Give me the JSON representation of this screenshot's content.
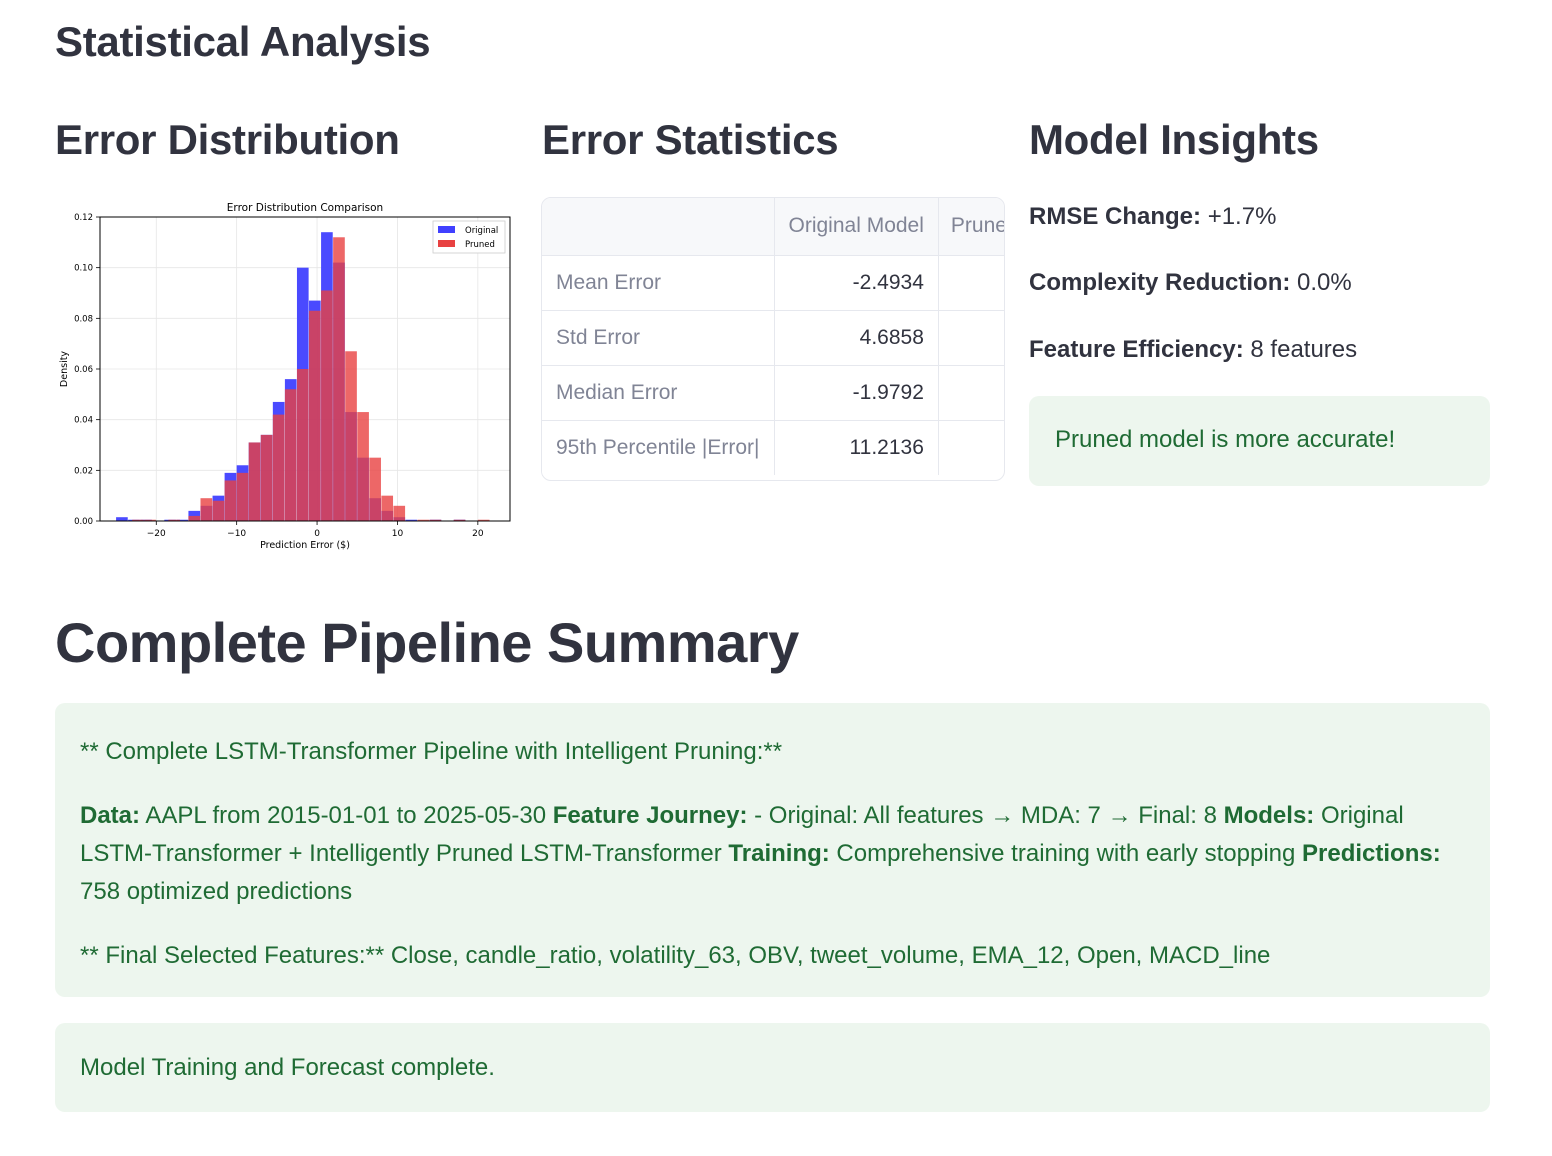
{
  "page": {
    "section_title": "Statistical Analysis",
    "pipeline_title": "Complete Pipeline Summary"
  },
  "columns": {
    "distribution_title": "Error Distribution",
    "statistics_title": "Error Statistics",
    "insights_title": "Model Insights"
  },
  "table": {
    "headers": [
      "",
      "Original Model",
      "Prune"
    ],
    "rows": [
      {
        "label": "Mean Error",
        "original": "-2.4934"
      },
      {
        "label": "Std Error",
        "original": "4.6858"
      },
      {
        "label": "Median Error",
        "original": "-1.9792"
      },
      {
        "label": "95th Percentile |Error|",
        "original": "11.2136"
      }
    ]
  },
  "insights": {
    "rmse_label": "RMSE Change:",
    "rmse_value": "+1.7%",
    "complexity_label": "Complexity Reduction:",
    "complexity_value": "0.0%",
    "feature_label": "Feature Efficiency:",
    "feature_value": "8 features",
    "alert": "Pruned model is more accurate!"
  },
  "summary": {
    "line1": "** Complete LSTM-Transformer Pipeline with Intelligent Pruning:**",
    "data_label": "Data:",
    "data_text": " AAPL from 2015-01-01 to 2025-05-30 ",
    "journey_label": "Feature Journey:",
    "journey_text": " - Original: All features → MDA: 7 → Final: 8 ",
    "models_label": "Models:",
    "models_text": " Original LSTM-Transformer + Intelligently Pruned LSTM-Transformer ",
    "training_label": "Training:",
    "training_text": " Comprehensive training with early stopping ",
    "predictions_label": "Predictions:",
    "predictions_text": " 758 optimized predictions",
    "features_line": "** Final Selected Features:** Close, candle_ratio, volatility_63, OBV, tweet_volume, EMA_12, Open, MACD_line",
    "status": "Model Training and Forecast complete."
  },
  "colors": {
    "original": "#4040ff",
    "pruned": "#e84141",
    "overlap": "#b0264f",
    "success_bg": "#edf6ee",
    "success_text": "#1f6b34"
  },
  "chart_data": {
    "type": "histogram",
    "title": "Error Distribution Comparison",
    "xlabel": "Prediction Error ($)",
    "ylabel": "Density",
    "xlim": [
      -27,
      24
    ],
    "ylim": [
      0,
      0.12
    ],
    "x_ticks": [
      -20,
      -10,
      0,
      10,
      20
    ],
    "x_tick_labels": [
      "−20",
      "−10",
      "0",
      "10",
      "20"
    ],
    "y_ticks": [
      0,
      0.02,
      0.04,
      0.06,
      0.08,
      0.1,
      0.12
    ],
    "y_tick_labels": [
      "0.00",
      "0.02",
      "0.04",
      "0.06",
      "0.08",
      "0.10",
      "0.12"
    ],
    "grid": true,
    "legend_position": "top-right",
    "series": [
      {
        "name": "Original",
        "bin_width": 1.45,
        "bins": [
          [
            -25,
            0.0015
          ],
          [
            -23.5,
            0.0005
          ],
          [
            -22,
            0.0005
          ],
          [
            -19,
            0.0005
          ],
          [
            -17.5,
            0.0005
          ],
          [
            -16,
            0.004
          ],
          [
            -14.5,
            0.006
          ],
          [
            -13,
            0.01
          ],
          [
            -11.5,
            0.019
          ],
          [
            -10,
            0.022
          ],
          [
            -8.5,
            0.031
          ],
          [
            -7,
            0.034
          ],
          [
            -5.5,
            0.047
          ],
          [
            -4,
            0.056
          ],
          [
            -2.5,
            0.1
          ],
          [
            -1,
            0.087
          ],
          [
            0.5,
            0.114
          ],
          [
            2,
            0.102
          ],
          [
            3.5,
            0.043
          ],
          [
            5,
            0.025
          ],
          [
            6.5,
            0.009
          ],
          [
            8,
            0.004
          ],
          [
            9.5,
            0.0015
          ],
          [
            11,
            0.0005
          ],
          [
            14,
            0.0005
          ],
          [
            17,
            0.0005
          ]
        ]
      },
      {
        "name": "Pruned",
        "bin_width": 1.45,
        "bins": [
          [
            -23,
            0.0005
          ],
          [
            -21.5,
            0.0005
          ],
          [
            -18.5,
            0.0005
          ],
          [
            -16,
            0.002
          ],
          [
            -14.5,
            0.009
          ],
          [
            -13,
            0.008
          ],
          [
            -11.5,
            0.016
          ],
          [
            -10,
            0.019
          ],
          [
            -8.5,
            0.031
          ],
          [
            -7,
            0.034
          ],
          [
            -5.5,
            0.042
          ],
          [
            -4,
            0.052
          ],
          [
            -2.5,
            0.06
          ],
          [
            -1,
            0.083
          ],
          [
            0.5,
            0.091
          ],
          [
            2,
            0.112
          ],
          [
            3.5,
            0.067
          ],
          [
            5,
            0.043
          ],
          [
            6.5,
            0.025
          ],
          [
            8,
            0.01
          ],
          [
            9.5,
            0.006
          ],
          [
            12.5,
            0.0005
          ],
          [
            14,
            0.0005
          ],
          [
            17,
            0.0005
          ],
          [
            20,
            0.0005
          ]
        ]
      }
    ]
  }
}
